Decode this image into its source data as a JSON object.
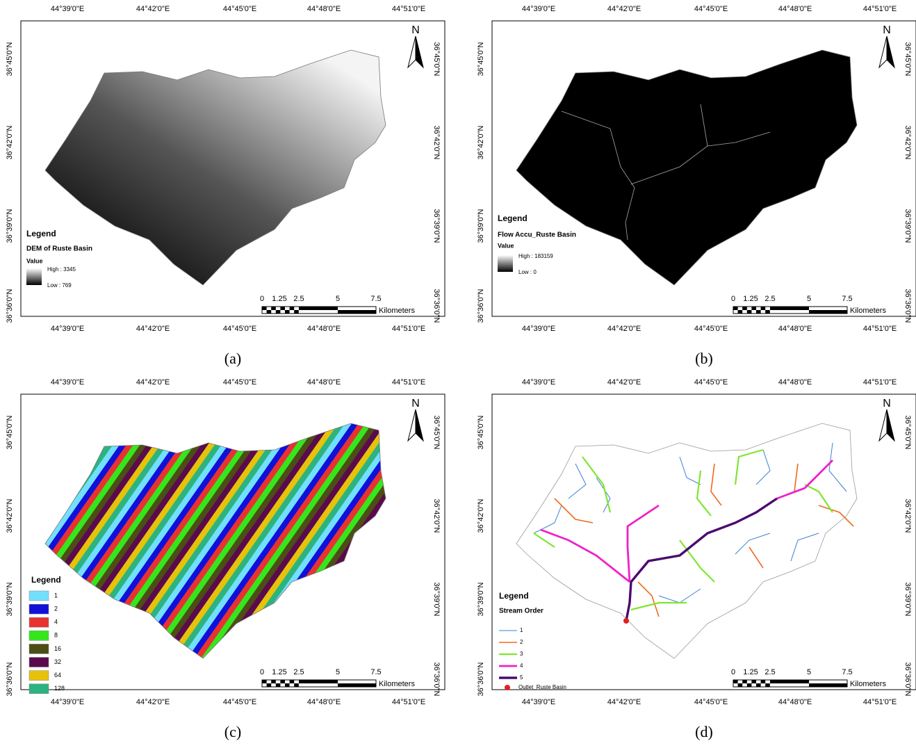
{
  "graticule": {
    "lon": [
      "44°39'0\"E",
      "44°42'0\"E",
      "44°45'0\"E",
      "44°48'0\"E",
      "44°51'0\"E"
    ],
    "lat": [
      "36°45'0\"N",
      "36°42'0\"N",
      "36°39'0\"N",
      "36°36'0\"N"
    ]
  },
  "north": "N",
  "scale_bar": {
    "ticks": [
      "0",
      "1.25",
      "2.5",
      "5",
      "7.5"
    ],
    "unit": "Kilometers"
  },
  "panels": [
    {
      "caption": "(a)",
      "legend": {
        "title": "Legend",
        "layer": "DEM of Ruste Basin",
        "field": "Value",
        "high": "High : 3345",
        "low": "Low : 769"
      }
    },
    {
      "caption": "(b)",
      "legend": {
        "title": "Legend",
        "layer": "Flow Accu_Ruste Basin",
        "field": "Value",
        "high": "High : 183159",
        "low": "Low : 0"
      }
    },
    {
      "caption": "(c)",
      "legend": {
        "title": "Legend",
        "items": [
          {
            "label": "1",
            "color": "#73dfff"
          },
          {
            "label": "2",
            "color": "#1010d8"
          },
          {
            "label": "4",
            "color": "#e83232"
          },
          {
            "label": "8",
            "color": "#35e61c"
          },
          {
            "label": "16",
            "color": "#4d4d16"
          },
          {
            "label": "32",
            "color": "#5a0a4d"
          },
          {
            "label": "64",
            "color": "#e6c30a"
          },
          {
            "label": "128",
            "color": "#2db380"
          }
        ]
      }
    },
    {
      "caption": "(d)",
      "legend": {
        "title": "Legend",
        "layer": "Stream Order",
        "items": [
          {
            "label": "1",
            "color": "#3a7fd5"
          },
          {
            "label": "2",
            "color": "#f06a1e"
          },
          {
            "label": "3",
            "color": "#7fe62f"
          },
          {
            "label": "4",
            "color": "#f020c8"
          },
          {
            "label": "5",
            "color": "#4b0a6e"
          }
        ],
        "outlet": {
          "label": "Outlet_Ruste Basin",
          "color": "#e02020"
        }
      }
    }
  ]
}
